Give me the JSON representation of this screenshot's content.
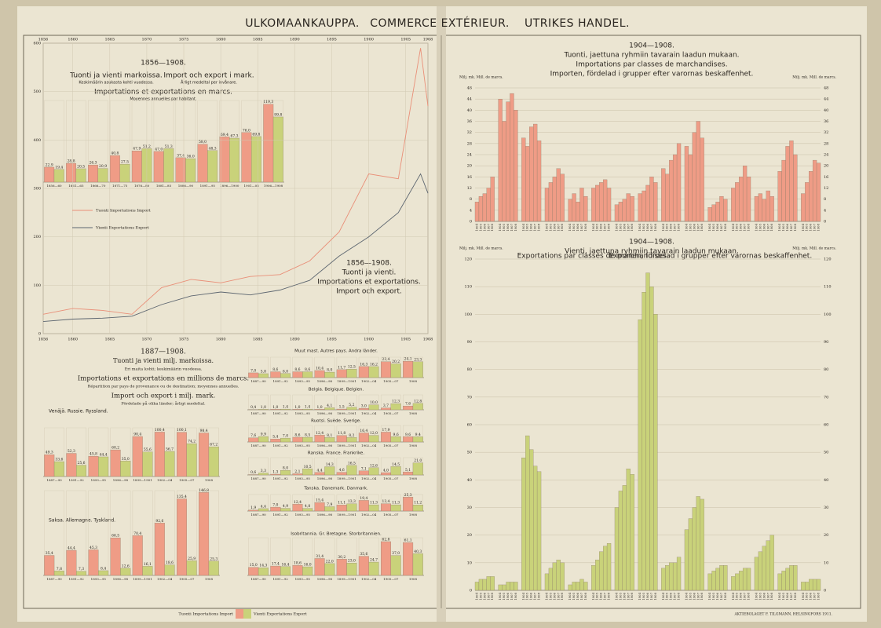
{
  "header": [
    "ULKOMAANKAUPPA.",
    "COMMERCE EXTÉRIEUR.",
    "UTRIKES HANDEL."
  ],
  "countries_header": [
    "1887—1908.",
    "Tuonti ja vienti milj. markoissa.",
    "Eri maita kohti; keskimäärin vuodessa.",
    "Importations et exportations en millions de marcs.",
    "Répartition par pays de provenance ou de destination; moyennes annuelles.",
    "Import och export i milj. mark.",
    "Fördelade på olika länder; årligt medeltal."
  ],
  "credit": "AKTIEBOLAGET F. TILGMANN, HELSINGFORS 1911.",
  "chart_data": [
    {
      "type": "bar",
      "texts": [
        "1856—1908.",
        "Tuonti ja vienti markoissa.",
        "Keskimäärin asukasta kohti vuodessa.",
        "Import och export i mark.",
        "Årligt medeltal per invånare.",
        "Importations et exportations en marcs.",
        "Moyennes annuelles par habitant."
      ],
      "categories": [
        "1856—60",
        "1861—65",
        "1866—70",
        "1871—75",
        "1876—80",
        "1881—85",
        "1886—90",
        "1891—95",
        "1896—1900",
        "1901—05",
        "1906—1908"
      ],
      "series": [
        {
          "name": "Tuonti Importations Import",
          "color": "#ef9c86",
          "values": [
            22.9,
            28.8,
            26.3,
            40.8,
            47.9,
            47.0,
            37.4,
            58.0,
            69.4,
            76.0,
            119.3
          ],
          "value_labels": [
            "22,9",
            "28,8",
            "26,3",
            "40,8",
            "47,9",
            "47,0",
            "37,4",
            "58,0",
            "69,4",
            "76,0",
            "119,3"
          ]
        },
        {
          "name": "Vienti Exportations Export",
          "color": "#c9d27a",
          "values": [
            19.4,
            20.5,
            20.9,
            27.5,
            51.2,
            51.3,
            36.0,
            48.3,
            67.3,
            69.8,
            99.8
          ],
          "value_labels": [
            "19,4",
            "20,5",
            "20,9",
            "27,5",
            "51,2",
            "51,3",
            "36,0",
            "48,3",
            "67,3",
            "69,8",
            "99,8"
          ]
        }
      ],
      "ylim": [
        0,
        125
      ]
    },
    {
      "type": "line",
      "texts": [
        "1856—1908.",
        "Tuonti ja vienti.",
        "Importations et exportations.",
        "Import och export."
      ],
      "x": [
        1856,
        1860,
        1864,
        1868,
        1872,
        1876,
        1880,
        1884,
        1888,
        1892,
        1896,
        1900,
        1904,
        1907,
        1908
      ],
      "series": [
        {
          "name": "Tuonti Importations Import",
          "color": "#e98f78",
          "values": [
            40,
            52,
            48,
            40,
            95,
            112,
            105,
            118,
            122,
            150,
            210,
            330,
            320,
            590,
            470
          ]
        },
        {
          "name": "Vienti Exportations Export",
          "color": "#5d6670",
          "values": [
            25,
            30,
            32,
            36,
            60,
            78,
            86,
            80,
            90,
            110,
            160,
            200,
            250,
            330,
            290
          ]
        }
      ],
      "xlim": [
        1856,
        1908
      ],
      "xticks": [
        1856,
        1860,
        1865,
        1870,
        1875,
        1880,
        1885,
        1890,
        1895,
        1900,
        1905,
        1908
      ],
      "ylim": [
        0,
        600
      ],
      "yticks": [
        0,
        100,
        200,
        300,
        400,
        500,
        600
      ],
      "grid": true
    },
    {
      "type": "bar",
      "texts": [
        "Venäjä. Russie. Ryssland."
      ],
      "categories": [
        "1887—90",
        "1891—92",
        "1893—95",
        "1896—98",
        "1899—1901",
        "1902—04",
        "1905—07",
        "1908"
      ],
      "series": [
        {
          "color": "#ef9c86",
          "values": [
            49.3,
            52.3,
            45.8,
            60.2,
            90.4,
            100.4,
            100.1,
            98.4
          ],
          "value_labels": [
            "49,3",
            "52,3",
            "45,8",
            "60,2",
            "90,4",
            "100,4",
            "100,1",
            "98,4"
          ]
        },
        {
          "color": "#c9d27a",
          "values": [
            33.6,
            25.6,
            44.4,
            35.0,
            55.6,
            56.7,
            74.2,
            67.2
          ],
          "value_labels": [
            "33,6",
            "25,6",
            "44,4",
            "35,0",
            "55,6",
            "56,7",
            "74,2",
            "67,2"
          ]
        }
      ],
      "ylim": [
        0,
        110
      ]
    },
    {
      "type": "bar",
      "texts": [
        "Saksa. Allemagne. Tyskland."
      ],
      "categories": [
        "1887—90",
        "1891—92",
        "1893—95",
        "1896—98",
        "1899—1901",
        "1902—04",
        "1905—07",
        "1908"
      ],
      "series": [
        {
          "color": "#ef9c86",
          "values": [
            35.4,
            44.4,
            45.3,
            66.5,
            70.4,
            92.6,
            135.4,
            146.8
          ],
          "value_labels": [
            "35,4",
            "44,4",
            "45,3",
            "66,5",
            "70,4",
            "92,6",
            "135,4",
            "146,8"
          ]
        },
        {
          "color": "#c9d27a",
          "values": [
            7.8,
            7.3,
            8.4,
            12.6,
            16.1,
            18.6,
            25.9,
            25.3
          ],
          "value_labels": [
            "7,8",
            "7,3",
            "8,4",
            "12,6",
            "16,1",
            "18,6",
            "25,9",
            "25,3"
          ]
        }
      ],
      "ylim": [
        0,
        150
      ]
    },
    {
      "type": "bar",
      "texts": [
        "Muut mast. Autres pays. Andra länder."
      ],
      "categories": [
        "1887—90",
        "1891—92",
        "1893—95",
        "1896—98",
        "1899—1901",
        "1902—04",
        "1905—07",
        "1908"
      ],
      "series": [
        {
          "color": "#ef9c86",
          "values": [
            7.0,
            8.6,
            8.6,
            10.4,
            11.7,
            16.3,
            23.4,
            24.1
          ],
          "value_labels": [
            "7,0",
            "8,6",
            "8,6",
            "10,4",
            "11,7",
            "16,3",
            "23,4",
            "24,1"
          ]
        },
        {
          "color": "#c9d27a",
          "values": [
            5.8,
            6.0,
            8.6,
            8.0,
            12.5,
            16.2,
            20.2,
            23.3
          ],
          "value_labels": [
            "5,8",
            "6,0",
            "8,6",
            "8,0",
            "12,5",
            "16,2",
            "20,2",
            "23,3"
          ]
        }
      ],
      "ylim": [
        0,
        30
      ]
    },
    {
      "type": "bar",
      "texts": [
        "Belgia. Belgique. Belgien."
      ],
      "categories": [
        "1887—90",
        "1891—92",
        "1893—95",
        "1896—98",
        "1899—1901",
        "1902—04",
        "1905—07",
        "1908"
      ],
      "series": [
        {
          "color": "#ef9c86",
          "values": [
            0.4,
            1.0,
            1.0,
            1.0,
            1.5,
            3.0,
            3.7,
            7.6
          ],
          "value_labels": [
            "0,4",
            "1,0",
            "1,0",
            "1,0",
            "1,5",
            "3,0",
            "3,7",
            "7,6"
          ]
        },
        {
          "color": "#c9d27a",
          "values": [
            1.0,
            1.4,
            1.4,
            4.1,
            5.2,
            10.0,
            12.3,
            12.8
          ],
          "value_labels": [
            "1,0",
            "1,4",
            "1,4",
            "4,1",
            "5,2",
            "10,0",
            "12,3",
            "12,8"
          ]
        }
      ],
      "ylim": [
        0,
        30
      ]
    },
    {
      "type": "bar",
      "texts": [
        "Ruotsi. Suède. Sverige."
      ],
      "categories": [
        "1887—90",
        "1891—92",
        "1893—95",
        "1896—98",
        "1899—1901",
        "1902—04",
        "1905—07",
        "1908"
      ],
      "series": [
        {
          "color": "#ef9c86",
          "values": [
            7.6,
            5.4,
            8.6,
            12.4,
            11.8,
            16.4,
            17.9,
            9.6
          ],
          "value_labels": [
            "7,6",
            "5,4",
            "8,6",
            "12,4",
            "11,8",
            "16,4",
            "17,9",
            "9,6"
          ]
        },
        {
          "color": "#c9d27a",
          "values": [
            9.9,
            7.0,
            8.5,
            8.1,
            8.2,
            12.0,
            9.6,
            9.4
          ],
          "value_labels": [
            "9,9",
            "7,0",
            "8,5",
            "8,1",
            "8,2",
            "12,0",
            "9,6",
            "9,4"
          ]
        }
      ],
      "ylim": [
        0,
        30
      ]
    },
    {
      "type": "bar",
      "texts": [
        "Ranska. France. Frankrike."
      ],
      "categories": [
        "1887—90",
        "1891—92",
        "1893—95",
        "1896—98",
        "1899—1901",
        "1902—04",
        "1905—07",
        "1908"
      ],
      "series": [
        {
          "color": "#ef9c86",
          "values": [
            0.6,
            1.3,
            2.1,
            4.4,
            4.6,
            7.1,
            4.0,
            5.1
          ],
          "value_labels": [
            "0,6",
            "1,3",
            "2,1",
            "4,4",
            "4,6",
            "7,1",
            "4,0",
            "5,1"
          ]
        },
        {
          "color": "#c9d27a",
          "values": [
            3.3,
            8.0,
            10.5,
            14.3,
            16.5,
            12.6,
            14.5,
            21.0
          ],
          "value_labels": [
            "3,3",
            "8,0",
            "10,5",
            "14,3",
            "16,5",
            "12,6",
            "14,5",
            "21,0"
          ]
        }
      ],
      "ylim": [
        0,
        30
      ]
    },
    {
      "type": "bar",
      "texts": [
        "Tanska. Danemark. Danmark."
      ],
      "categories": [
        "1887—90",
        "1891—92",
        "1893—95",
        "1896—98",
        "1899—1901",
        "1902—04",
        "1905—07",
        "1908"
      ],
      "series": [
        {
          "color": "#ef9c86",
          "values": [
            1.9,
            7.0,
            12.4,
            15.4,
            11.1,
            19.4,
            13.4,
            25.3
          ],
          "value_labels": [
            "1,9",
            "7,0",
            "12,4",
            "15,4",
            "11,1",
            "19,4",
            "13,4",
            "25,3"
          ]
        },
        {
          "color": "#c9d27a",
          "values": [
            4.4,
            4.9,
            4.8,
            7.9,
            13.3,
            11.3,
            11.3,
            11.2
          ],
          "value_labels": [
            "4,4",
            "4,9",
            "4,8",
            "7,9",
            "13,3",
            "11,3",
            "11,3",
            "11,2"
          ]
        }
      ],
      "ylim": [
        0,
        30
      ]
    },
    {
      "type": "bar",
      "texts": [
        "Isobritannia. Gr. Bretagne. Storbritannien."
      ],
      "categories": [
        "1887—90",
        "1891—92",
        "1893—95",
        "1896—98",
        "1899—1901",
        "1902—04",
        "1905—07",
        "1908"
      ],
      "series": [
        {
          "color": "#ef9c86",
          "values": [
            15.0,
            17.4,
            18.6,
            31.4,
            30.2,
            35.6,
            62.8,
            61.1
          ],
          "value_labels": [
            "15,0",
            "17,4",
            "18,6",
            "31,4",
            "30,2",
            "35,6",
            "62,8",
            "61,1"
          ]
        },
        {
          "color": "#c9d27a",
          "values": [
            14.3,
            16.4,
            16.0,
            22.0,
            23.0,
            24.7,
            37.0,
            40.3
          ],
          "value_labels": [
            "14,3",
            "16,4",
            "16,0",
            "22,0",
            "23,0",
            "24,7",
            "37,0",
            "40,3"
          ]
        }
      ],
      "ylim": [
        0,
        70
      ]
    },
    {
      "type": "bar",
      "texts": [
        "1904—1908.",
        "Tuonti, jaettuna ryhmiin tavarain laadun mukaan.",
        "Importations par classes de marchandises.",
        "Importen, fördelad i grupper efter varornas beskaffenhet."
      ],
      "ylabel": "Milj. mk. Mill. de marcs.",
      "categories": [
        "1904",
        "1905",
        "1906",
        "1907",
        "1908",
        "1904",
        "1905",
        "1906",
        "1907",
        "1908",
        "1904",
        "1905",
        "1906",
        "1907",
        "1908",
        "1904",
        "1905",
        "1906",
        "1907",
        "1908",
        "1904",
        "1905",
        "1906",
        "1907",
        "1908",
        "1904",
        "1905",
        "1906",
        "1907",
        "1908",
        "1904",
        "1905",
        "1906",
        "1907",
        "1908",
        "1904",
        "1905",
        "1906",
        "1907",
        "1908",
        "1904",
        "1905",
        "1906",
        "1907",
        "1908",
        "1904",
        "1905",
        "1906",
        "1907",
        "1908",
        "1904",
        "1905",
        "1906",
        "1907",
        "1908",
        "1904",
        "1905",
        "1906",
        "1907",
        "1908",
        "1904",
        "1905",
        "1906",
        "1907",
        "1908",
        "1904",
        "1905",
        "1906",
        "1907",
        "1908",
        "1904",
        "1905",
        "1906",
        "1907",
        "1908"
      ],
      "series": [
        {
          "color": "#ef9c86",
          "values": [
            7,
            9,
            10,
            12,
            16,
            44,
            36,
            43,
            46,
            40,
            30,
            27,
            34,
            35,
            29,
            12,
            14,
            16,
            19,
            17,
            8,
            10,
            7,
            12,
            9,
            12,
            13,
            14,
            15,
            12,
            6,
            7,
            8,
            10,
            9,
            10,
            11,
            13,
            16,
            14,
            19,
            17,
            22,
            24,
            28,
            27,
            24,
            32,
            36,
            30,
            5,
            6,
            7,
            9,
            8,
            12,
            14,
            16,
            20,
            16,
            9,
            10,
            8,
            11,
            9,
            18,
            22,
            27,
            29,
            24,
            10,
            14,
            18,
            22,
            21
          ]
        }
      ],
      "ylim": [
        0,
        48
      ],
      "yticks": [
        0,
        4,
        8,
        12,
        16,
        20,
        24,
        28,
        32,
        36,
        40,
        44,
        48
      ],
      "grid": true
    },
    {
      "type": "bar",
      "texts": [
        "1904—1908.",
        "Vienti, jaettuna ryhmiin tavarain laadun mukaan.",
        "Exportations par classes de marchandises.",
        "Exporten, fördelad i grupper efter varornas beskaffenhet."
      ],
      "ylabel": "Milj. mk. Mill. de marcs.",
      "categories": [
        "1904",
        "1905",
        "1906",
        "1907",
        "1908",
        "1904",
        "1905",
        "1906",
        "1907",
        "1908",
        "1904",
        "1905",
        "1906",
        "1907",
        "1908",
        "1904",
        "1905",
        "1906",
        "1907",
        "1908",
        "1904",
        "1905",
        "1906",
        "1907",
        "1908",
        "1904",
        "1905",
        "1906",
        "1907",
        "1908",
        "1904",
        "1905",
        "1906",
        "1907",
        "1908",
        "1904",
        "1905",
        "1906",
        "1907",
        "1908",
        "1904",
        "1905",
        "1906",
        "1907",
        "1908",
        "1904",
        "1905",
        "1906",
        "1907",
        "1908",
        "1904",
        "1905",
        "1906",
        "1907",
        "1908",
        "1904",
        "1905",
        "1906",
        "1907",
        "1908",
        "1904",
        "1905",
        "1906",
        "1907",
        "1908",
        "1904",
        "1905",
        "1906",
        "1907",
        "1908",
        "1904",
        "1905",
        "1906",
        "1907",
        "1908"
      ],
      "series": [
        {
          "color": "#c9d27a",
          "values": [
            3,
            4,
            4,
            5,
            5,
            2,
            2,
            3,
            3,
            3,
            48,
            56,
            51,
            45,
            43,
            6,
            8,
            10,
            11,
            10,
            2,
            3,
            3,
            4,
            3,
            9,
            11,
            14,
            16,
            17,
            30,
            36,
            38,
            44,
            42,
            98,
            108,
            115,
            110,
            100,
            8,
            9,
            10,
            10,
            12,
            22,
            26,
            30,
            34,
            33,
            6,
            7,
            8,
            9,
            9,
            5,
            6,
            7,
            8,
            8,
            12,
            14,
            16,
            18,
            20,
            6,
            7,
            8,
            9,
            9,
            3,
            3,
            4,
            4,
            4
          ]
        }
      ],
      "ylim": [
        0,
        120
      ],
      "yticks": [
        0,
        10,
        20,
        30,
        40,
        50,
        60,
        70,
        80,
        90,
        100,
        110,
        120
      ],
      "grid": true
    }
  ]
}
